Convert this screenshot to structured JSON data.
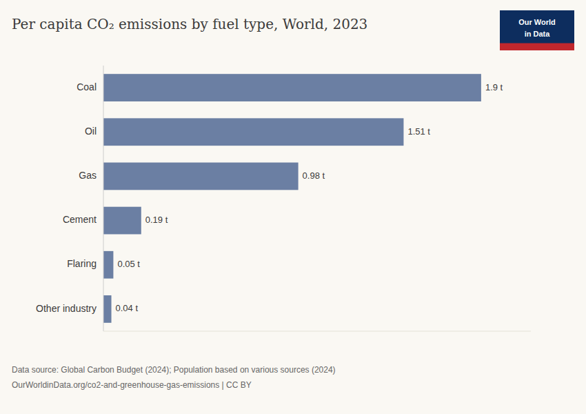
{
  "chart_data": {
    "type": "bar",
    "orientation": "horizontal",
    "title": "Per capita CO₂ emissions by fuel type, World, 2023",
    "categories": [
      "Coal",
      "Oil",
      "Gas",
      "Cement",
      "Flaring",
      "Other industry"
    ],
    "values": [
      1.9,
      1.51,
      0.98,
      0.19,
      0.05,
      0.04
    ],
    "value_labels": [
      "1.9 t",
      "1.51 t",
      "0.98 t",
      "0.19 t",
      "0.05 t",
      "0.04 t"
    ],
    "data_labels": true,
    "color": "#6b7fa3",
    "xlim": [
      0,
      2.15
    ],
    "tick_labels": "y",
    "grid": false,
    "annotations": [
      "Our World",
      "in Data",
      "Data source: Global Carbon Budget (2024); Population based on various sources (2024)",
      "OurWorldinData.org/co2-and-greenhouse-gas-emissions | CC BY"
    ]
  }
}
